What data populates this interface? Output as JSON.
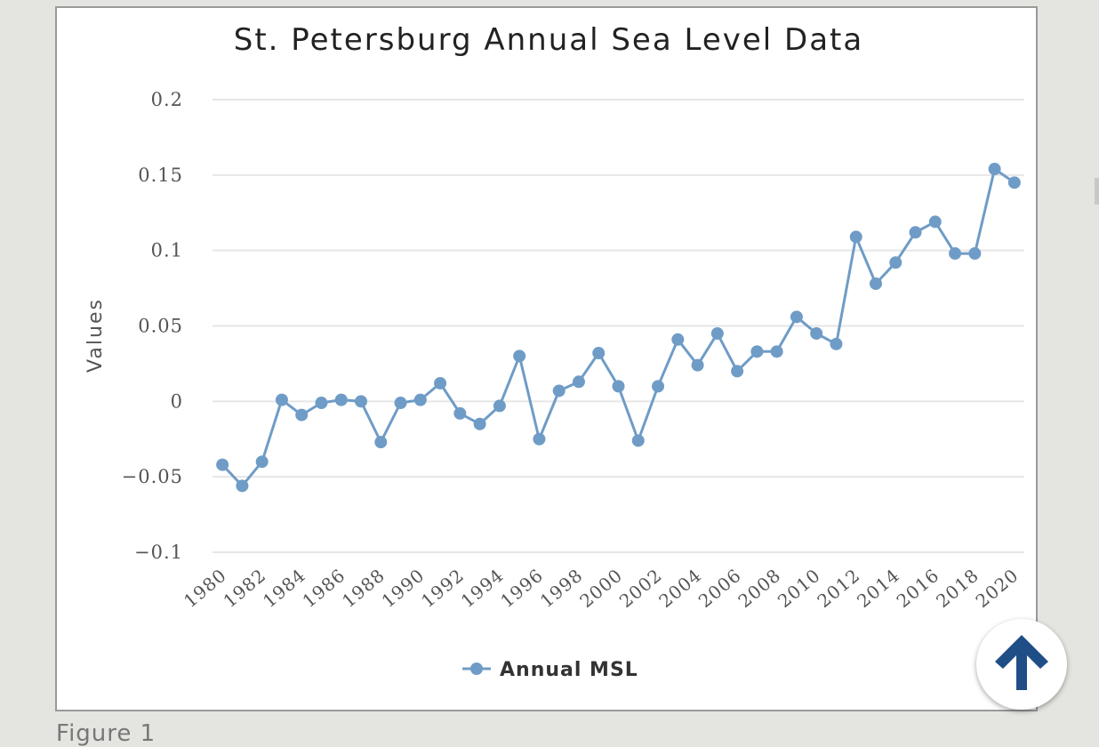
{
  "chart_data": {
    "type": "line",
    "title": "St. Petersburg Annual Sea Level Data",
    "ylabel": "Values",
    "xlabel": "",
    "ylim": [
      -0.1,
      0.2
    ],
    "yticks": [
      {
        "value": 0.2,
        "label": "0.2"
      },
      {
        "value": 0.15,
        "label": "0.15"
      },
      {
        "value": 0.1,
        "label": "0.1"
      },
      {
        "value": 0.05,
        "label": "0.05"
      },
      {
        "value": 0,
        "label": "0"
      },
      {
        "value": -0.05,
        "label": "−0.05"
      },
      {
        "value": -0.1,
        "label": "−0.1"
      }
    ],
    "xticks": [
      "1980",
      "1982",
      "1984",
      "1986",
      "1988",
      "1990",
      "1992",
      "1994",
      "1996",
      "1998",
      "2000",
      "2002",
      "2004",
      "2006",
      "2008",
      "2010",
      "2012",
      "2014",
      "2016",
      "2018",
      "2020"
    ],
    "x": [
      1980,
      1981,
      1982,
      1983,
      1984,
      1985,
      1986,
      1987,
      1988,
      1989,
      1990,
      1991,
      1992,
      1993,
      1994,
      1995,
      1996,
      1997,
      1998,
      1999,
      2000,
      2001,
      2002,
      2003,
      2004,
      2005,
      2006,
      2007,
      2008,
      2009,
      2010,
      2011,
      2012,
      2013,
      2014,
      2015,
      2016,
      2017,
      2018,
      2019,
      2020
    ],
    "series": [
      {
        "name": "Annual MSL",
        "color": "#6f9cc6",
        "values": [
          -0.042,
          -0.056,
          -0.04,
          0.001,
          -0.009,
          -0.001,
          0.001,
          0.0,
          -0.027,
          -0.001,
          0.001,
          0.012,
          -0.008,
          -0.015,
          -0.003,
          0.03,
          -0.025,
          0.007,
          0.013,
          0.032,
          0.01,
          -0.026,
          0.01,
          0.041,
          0.024,
          0.045,
          0.02,
          0.033,
          0.033,
          0.056,
          0.045,
          0.038,
          0.109,
          0.078,
          0.092,
          0.112,
          0.119,
          0.098,
          0.098,
          0.154,
          0.145
        ]
      }
    ],
    "grid": true,
    "legend_position": "bottom-center"
  },
  "caption": "Figure 1",
  "colors": {
    "page_background": "#e4e4e0",
    "panel_background": "#ffffff",
    "scroll_arrow": "#1f4e87"
  },
  "scroll_button_icon": "arrow-up-icon"
}
